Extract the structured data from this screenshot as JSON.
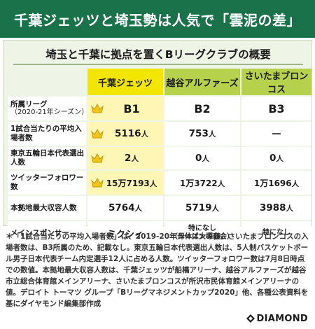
{
  "title": "千葉ジェッツと埼玉勢は人気で「雲泥の差」",
  "subtitle": "埼玉と千葉に拠点を置くBリーグクラブの概要",
  "clubs": [
    "千葉ジェッツ",
    "越谷アルファーズ",
    "さいたまブロンコス"
  ],
  "rows": [
    {
      "label": "所属リーグ",
      "label_sub": "（2020-21年シーズン）",
      "values": [
        "B1",
        "B2",
        "B3"
      ]
    },
    {
      "label": "1試合当たりの平均入場者数",
      "values": [
        "5116",
        "753",
        "—"
      ],
      "unit": "人"
    },
    {
      "label": "東京五輪日本代表選出人数",
      "values": [
        "2",
        "0",
        "0"
      ],
      "unit": "人"
    },
    {
      "label": "ツイッターフォロワー数",
      "values": [
        "15万7193",
        "1万3722",
        "1万1696"
      ],
      "unit": "人"
    },
    {
      "label": "本拠地最大収容人数",
      "values": [
        "5764",
        "5719",
        "3988"
      ],
      "unit": "人"
    },
    {
      "label": "メインスポンサー",
      "values": [
        "ミクシィ",
        "特になし",
        "特になし"
      ],
      "value2_note": "（母体は大塚商会）"
    }
  ],
  "footnote": "＊「1試合当たりの平均入場者数」は、2019-20年シーズンの値。さいたまブロンコスの入場者数は、B3所属のため、記載なし。東京五輪日本代表選出人数は、5人制バスケットボール男子日本代表チーム内定選手12人に占める人数。ツイッターフォロワー数は7月8日時点での数値。本拠地最大収容人数は、千葉ジェッツが船橋アリーナ、越谷アルファーズが越谷市立総合体育館メインアリーナ、さいたまブロンコスが所沢市民体育館メインアリーナの値。デロイト トーマツ グループ「Bリーグマネジメントカップ2020」他、各種公表資料を基にダイヤモンド編集部作成",
  "logo_text": "DIAMOND",
  "colors": {
    "banner": "#19724a",
    "jets_header": "#f2e600",
    "jets_cell": "#fdf6b4",
    "other_header": "#b6d14b",
    "panel": "#eef4e6"
  },
  "icons": {
    "leader_marker": "crown-icon",
    "logo_mark": "diamond-icon"
  }
}
